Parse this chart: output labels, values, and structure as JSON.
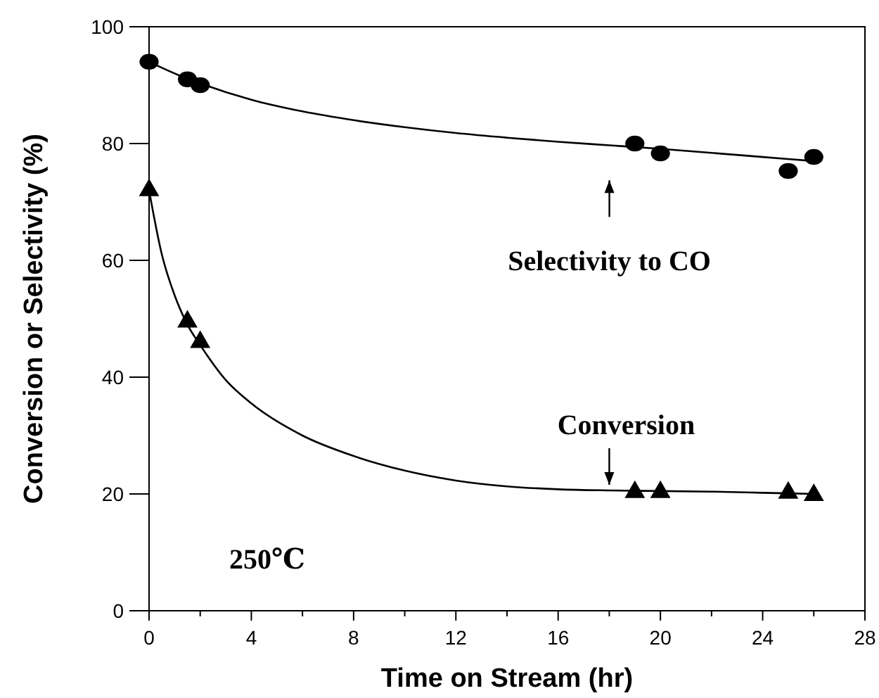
{
  "chart_data": {
    "type": "scatter",
    "xlabel": "Time on Stream (hr)",
    "ylabel": "Conversion or Selectivity (%)",
    "xlim": [
      0,
      28
    ],
    "ylim": [
      0,
      100
    ],
    "xticks": [
      0,
      {
        "value": 2,
        "label": null
      },
      4,
      {
        "value": 6,
        "label": null
      },
      8,
      {
        "value": 10,
        "label": null
      },
      12,
      {
        "value": 14,
        "label": null
      },
      16,
      {
        "value": 18,
        "label": null
      },
      20,
      {
        "value": 22,
        "label": null
      },
      24,
      {
        "value": 26,
        "label": null
      },
      28
    ],
    "yticks": [
      0,
      20,
      40,
      60,
      80,
      100
    ],
    "grid": false,
    "series": [
      {
        "marker": "circle",
        "color": "#000000",
        "x": [
          0,
          1.5,
          2,
          19,
          20,
          25,
          26
        ],
        "values": [
          94,
          91,
          90,
          80,
          78.3,
          75.3,
          77.7
        ]
      },
      {
        "marker": "triangle",
        "color": "#000000",
        "x": [
          0,
          1.5,
          2,
          19,
          20,
          25,
          26
        ],
        "values": [
          72,
          49.5,
          46,
          20.3,
          20.3,
          20.2,
          19.8
        ]
      },
      {
        "type": "line",
        "marker": "none",
        "line_style": "solid",
        "color": "#000000",
        "x": [
          0,
          1,
          2,
          4,
          6,
          8,
          10,
          12,
          14,
          16,
          18,
          20,
          22,
          24,
          26
        ],
        "values": [
          94,
          92,
          90.3,
          87.5,
          85.5,
          84,
          82.8,
          81.8,
          81,
          80.3,
          79.7,
          79.1,
          78.4,
          77.7,
          77
        ]
      },
      {
        "type": "line",
        "marker": "none",
        "line_style": "solid",
        "color": "#000000",
        "x": [
          0,
          0.5,
          1,
          1.5,
          2,
          3,
          4,
          6,
          8,
          10,
          12,
          14,
          16,
          18,
          20,
          22,
          24,
          26
        ],
        "values": [
          72,
          61,
          54,
          49,
          45.5,
          39.5,
          35.5,
          30,
          26.5,
          24,
          22.3,
          21.3,
          20.8,
          20.6,
          20.5,
          20.4,
          20.2,
          20
        ]
      }
    ],
    "annotations": [
      "Selectivity to CO",
      {
        "text": "Conversion",
        "x": 18,
        "y": 20.6
      },
      "250℃"
    ]
  }
}
